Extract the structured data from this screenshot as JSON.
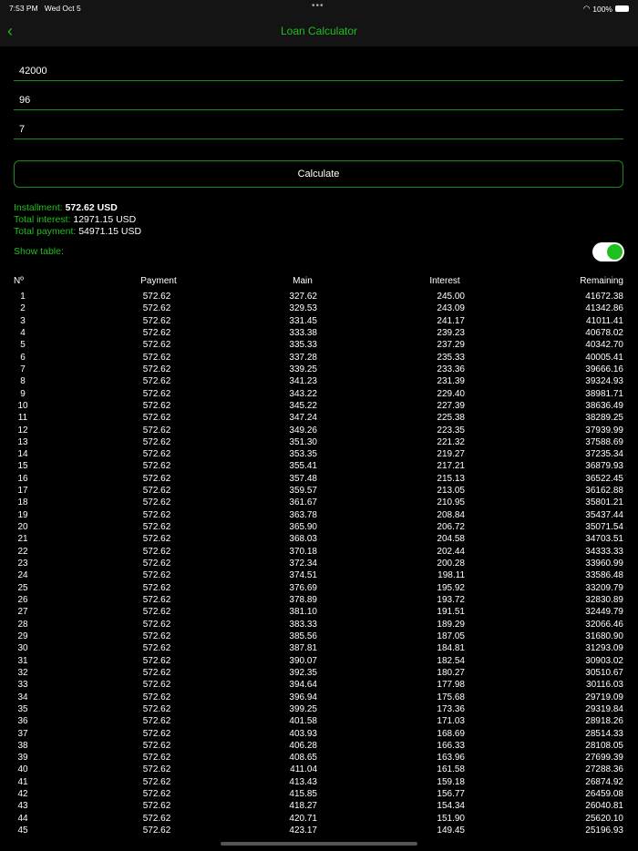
{
  "status": {
    "time": "7:53 PM",
    "date": "Wed Oct 5",
    "battery": "100%"
  },
  "nav": {
    "title": "Loan Calculator",
    "back_icon": "chevron-left-icon"
  },
  "inputs": {
    "amount": "42000",
    "months": "96",
    "rate": "7"
  },
  "calculate_label": "Calculate",
  "summary": {
    "installment_label": "Installment:",
    "installment": "572.62 USD",
    "interest_label": "Total interest:",
    "interest": "12971.15 USD",
    "payment_label": "Total payment:",
    "payment": "54971.15 USD",
    "show_table_label": "Show table:",
    "show_table": true
  },
  "accent": "#1fbf1f",
  "table": {
    "headers": [
      "Nº",
      "Payment",
      "Main",
      "Interest",
      "Remaining"
    ],
    "rows": [
      [
        "1",
        "572.62",
        "327.62",
        "245.00",
        "41672.38"
      ],
      [
        "2",
        "572.62",
        "329.53",
        "243.09",
        "41342.86"
      ],
      [
        "3",
        "572.62",
        "331.45",
        "241.17",
        "41011.41"
      ],
      [
        "4",
        "572.62",
        "333.38",
        "239.23",
        "40678.02"
      ],
      [
        "5",
        "572.62",
        "335.33",
        "237.29",
        "40342.70"
      ],
      [
        "6",
        "572.62",
        "337.28",
        "235.33",
        "40005.41"
      ],
      [
        "7",
        "572.62",
        "339.25",
        "233.36",
        "39666.16"
      ],
      [
        "8",
        "572.62",
        "341.23",
        "231.39",
        "39324.93"
      ],
      [
        "9",
        "572.62",
        "343.22",
        "229.40",
        "38981.71"
      ],
      [
        "10",
        "572.62",
        "345.22",
        "227.39",
        "38636.49"
      ],
      [
        "11",
        "572.62",
        "347.24",
        "225.38",
        "38289.25"
      ],
      [
        "12",
        "572.62",
        "349.26",
        "223.35",
        "37939.99"
      ],
      [
        "13",
        "572.62",
        "351.30",
        "221.32",
        "37588.69"
      ],
      [
        "14",
        "572.62",
        "353.35",
        "219.27",
        "37235.34"
      ],
      [
        "15",
        "572.62",
        "355.41",
        "217.21",
        "36879.93"
      ],
      [
        "16",
        "572.62",
        "357.48",
        "215.13",
        "36522.45"
      ],
      [
        "17",
        "572.62",
        "359.57",
        "213.05",
        "36162.88"
      ],
      [
        "18",
        "572.62",
        "361.67",
        "210.95",
        "35801.21"
      ],
      [
        "19",
        "572.62",
        "363.78",
        "208.84",
        "35437.44"
      ],
      [
        "20",
        "572.62",
        "365.90",
        "206.72",
        "35071.54"
      ],
      [
        "21",
        "572.62",
        "368.03",
        "204.58",
        "34703.51"
      ],
      [
        "22",
        "572.62",
        "370.18",
        "202.44",
        "34333.33"
      ],
      [
        "23",
        "572.62",
        "372.34",
        "200.28",
        "33960.99"
      ],
      [
        "24",
        "572.62",
        "374.51",
        "198.11",
        "33586.48"
      ],
      [
        "25",
        "572.62",
        "376.69",
        "195.92",
        "33209.79"
      ],
      [
        "26",
        "572.62",
        "378.89",
        "193.72",
        "32830.89"
      ],
      [
        "27",
        "572.62",
        "381.10",
        "191.51",
        "32449.79"
      ],
      [
        "28",
        "572.62",
        "383.33",
        "189.29",
        "32066.46"
      ],
      [
        "29",
        "572.62",
        "385.56",
        "187.05",
        "31680.90"
      ],
      [
        "30",
        "572.62",
        "387.81",
        "184.81",
        "31293.09"
      ],
      [
        "31",
        "572.62",
        "390.07",
        "182.54",
        "30903.02"
      ],
      [
        "32",
        "572.62",
        "392.35",
        "180.27",
        "30510.67"
      ],
      [
        "33",
        "572.62",
        "394.64",
        "177.98",
        "30116.03"
      ],
      [
        "34",
        "572.62",
        "396.94",
        "175.68",
        "29719.09"
      ],
      [
        "35",
        "572.62",
        "399.25",
        "173.36",
        "29319.84"
      ],
      [
        "36",
        "572.62",
        "401.58",
        "171.03",
        "28918.26"
      ],
      [
        "37",
        "572.62",
        "403.93",
        "168.69",
        "28514.33"
      ],
      [
        "38",
        "572.62",
        "406.28",
        "166.33",
        "28108.05"
      ],
      [
        "39",
        "572.62",
        "408.65",
        "163.96",
        "27699.39"
      ],
      [
        "40",
        "572.62",
        "411.04",
        "161.58",
        "27288.36"
      ],
      [
        "41",
        "572.62",
        "413.43",
        "159.18",
        "26874.92"
      ],
      [
        "42",
        "572.62",
        "415.85",
        "156.77",
        "26459.08"
      ],
      [
        "43",
        "572.62",
        "418.27",
        "154.34",
        "26040.81"
      ],
      [
        "44",
        "572.62",
        "420.71",
        "151.90",
        "25620.10"
      ],
      [
        "45",
        "572.62",
        "423.17",
        "149.45",
        "25196.93"
      ]
    ]
  }
}
